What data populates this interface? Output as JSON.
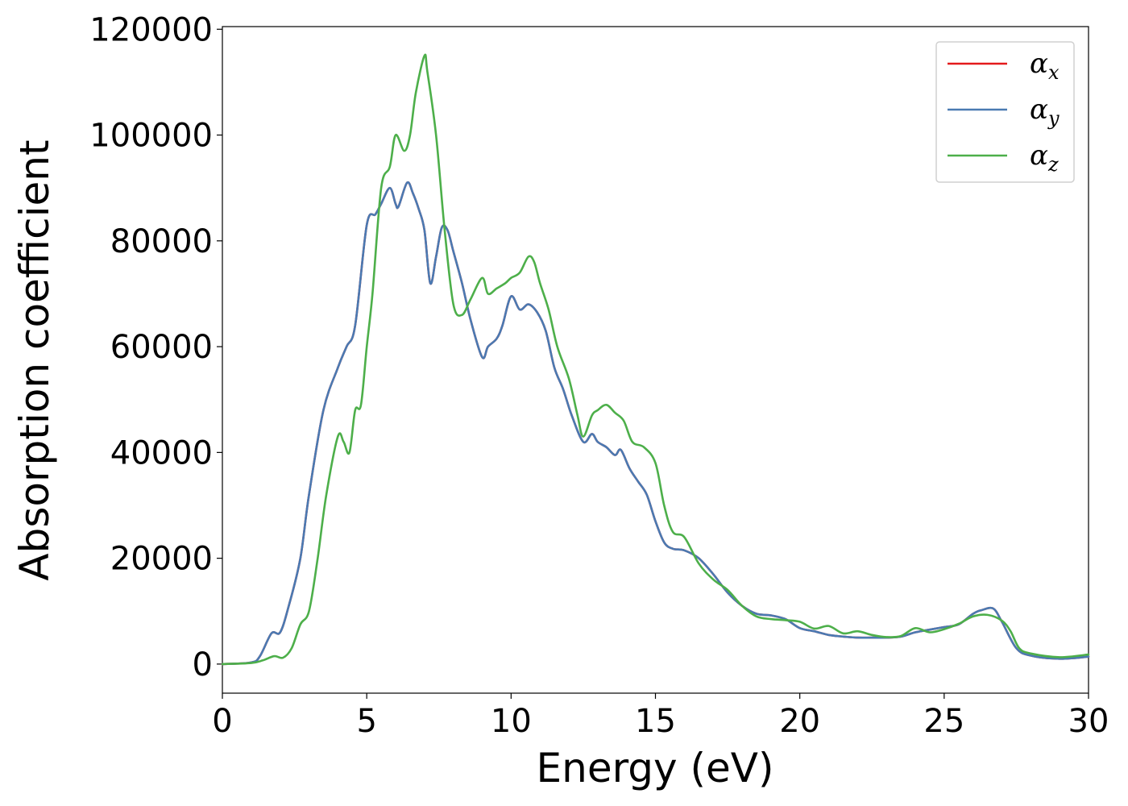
{
  "chart_data": {
    "type": "line",
    "xlabel": "Energy (eV)",
    "ylabel": "Absorption coefficient",
    "xlim": [
      0,
      30
    ],
    "ylim": [
      -5500,
      120500
    ],
    "x_ticks": [
      "0",
      "5",
      "10",
      "15",
      "20",
      "25",
      "30"
    ],
    "y_ticks": [
      "0",
      "20000",
      "40000",
      "60000",
      "80000",
      "100000",
      "120000"
    ],
    "grid": false,
    "legend_position": "top-right",
    "series": [
      {
        "name": "α_x",
        "label_main": "α",
        "label_sub": "x",
        "color": "#e41a1c",
        "x": [
          0.0,
          1.0,
          1.3,
          1.7,
          2.0,
          2.3,
          2.7,
          3.0,
          3.5,
          4.0,
          4.3,
          4.6,
          5.0,
          5.3,
          5.5,
          5.8,
          6.0,
          6.1,
          6.4,
          6.6,
          6.8,
          7.0,
          7.2,
          7.4,
          7.6,
          7.8,
          8.0,
          8.3,
          8.6,
          9.0,
          9.2,
          9.5,
          9.7,
          10.0,
          10.3,
          10.6,
          10.9,
          11.2,
          11.5,
          11.8,
          12.1,
          12.5,
          12.8,
          13.0,
          13.3,
          13.6,
          13.8,
          14.1,
          14.4,
          14.7,
          15.0,
          15.3,
          15.6,
          16.0,
          16.5,
          17.0,
          17.5,
          18.0,
          18.5,
          19.0,
          19.5,
          20.0,
          20.5,
          21.0,
          21.5,
          22.0,
          22.5,
          23.0,
          23.5,
          24.0,
          24.5,
          25.0,
          25.5,
          26.0,
          26.3,
          26.7,
          27.0,
          27.5,
          28.0,
          29.0,
          30.0
        ],
        "y": [
          0,
          300,
          1500,
          5800,
          6000,
          11000,
          20000,
          32000,
          48000,
          56000,
          60000,
          64000,
          83000,
          85000,
          87000,
          90000,
          87000,
          86500,
          91000,
          89000,
          86000,
          82000,
          72000,
          77000,
          82500,
          82000,
          78000,
          72000,
          65000,
          58000,
          60000,
          61500,
          64000,
          69500,
          67000,
          68000,
          66500,
          63000,
          56000,
          52000,
          47000,
          42000,
          43500,
          42000,
          41000,
          39500,
          40500,
          37000,
          34500,
          32000,
          27000,
          23000,
          21800,
          21500,
          20000,
          17000,
          13500,
          11000,
          9500,
          9200,
          8500,
          6800,
          6200,
          5500,
          5200,
          5000,
          5000,
          5000,
          5200,
          6000,
          6500,
          7000,
          7500,
          9500,
          10200,
          10500,
          8000,
          3000,
          1600,
          1000,
          1400
        ]
      },
      {
        "name": "α_y",
        "label_main": "α",
        "label_sub": "y",
        "color": "#4a7ab2",
        "x": [
          0.0,
          1.0,
          1.3,
          1.7,
          2.0,
          2.3,
          2.7,
          3.0,
          3.5,
          4.0,
          4.3,
          4.6,
          5.0,
          5.3,
          5.5,
          5.8,
          6.0,
          6.1,
          6.4,
          6.6,
          6.8,
          7.0,
          7.2,
          7.4,
          7.6,
          7.8,
          8.0,
          8.3,
          8.6,
          9.0,
          9.2,
          9.5,
          9.7,
          10.0,
          10.3,
          10.6,
          10.9,
          11.2,
          11.5,
          11.8,
          12.1,
          12.5,
          12.8,
          13.0,
          13.3,
          13.6,
          13.8,
          14.1,
          14.4,
          14.7,
          15.0,
          15.3,
          15.6,
          16.0,
          16.5,
          17.0,
          17.5,
          18.0,
          18.5,
          19.0,
          19.5,
          20.0,
          20.5,
          21.0,
          21.5,
          22.0,
          22.5,
          23.0,
          23.5,
          24.0,
          24.5,
          25.0,
          25.5,
          26.0,
          26.3,
          26.7,
          27.0,
          27.5,
          28.0,
          29.0,
          30.0
        ],
        "y": [
          0,
          300,
          1500,
          5800,
          6000,
          11000,
          20000,
          32000,
          48000,
          56000,
          60000,
          64000,
          83000,
          85000,
          87000,
          90000,
          87000,
          86500,
          91000,
          89000,
          86000,
          82000,
          72000,
          77000,
          82500,
          82000,
          78000,
          72000,
          65000,
          58000,
          60000,
          61500,
          64000,
          69500,
          67000,
          68000,
          66500,
          63000,
          56000,
          52000,
          47000,
          42000,
          43500,
          42000,
          41000,
          39500,
          40500,
          37000,
          34500,
          32000,
          27000,
          23000,
          21800,
          21500,
          20000,
          17000,
          13500,
          11000,
          9500,
          9200,
          8500,
          6800,
          6200,
          5500,
          5200,
          5000,
          5000,
          5000,
          5200,
          6000,
          6500,
          7000,
          7500,
          9500,
          10200,
          10500,
          8000,
          3000,
          1600,
          1000,
          1400
        ]
      },
      {
        "name": "α_z",
        "label_main": "α",
        "label_sub": "z",
        "color": "#4daf4a",
        "x": [
          0.0,
          1.0,
          1.4,
          1.8,
          2.1,
          2.4,
          2.7,
          3.0,
          3.3,
          3.6,
          4.0,
          4.2,
          4.4,
          4.6,
          4.8,
          5.0,
          5.2,
          5.5,
          5.8,
          6.0,
          6.3,
          6.5,
          6.7,
          7.0,
          7.1,
          7.4,
          7.7,
          8.0,
          8.3,
          8.6,
          9.0,
          9.2,
          9.5,
          9.8,
          10.0,
          10.3,
          10.6,
          10.8,
          11.0,
          11.3,
          11.6,
          12.0,
          12.3,
          12.5,
          12.8,
          13.0,
          13.3,
          13.6,
          13.9,
          14.2,
          14.6,
          15.0,
          15.3,
          15.6,
          16.0,
          16.5,
          17.0,
          17.5,
          18.0,
          18.5,
          19.0,
          19.5,
          20.0,
          20.5,
          21.0,
          21.5,
          22.0,
          22.5,
          23.0,
          23.5,
          24.0,
          24.5,
          25.0,
          25.5,
          26.0,
          26.5,
          27.0,
          27.3,
          27.6,
          28.0,
          29.0,
          30.0
        ],
        "y": [
          0,
          200,
          700,
          1500,
          1200,
          3000,
          7500,
          10000,
          20000,
          32000,
          43000,
          42000,
          40000,
          48000,
          49000,
          60000,
          70000,
          90000,
          94000,
          100000,
          97000,
          100000,
          108000,
          115000,
          112000,
          100000,
          82000,
          68000,
          66000,
          69000,
          73000,
          70000,
          71000,
          72000,
          73000,
          74000,
          77000,
          76000,
          72000,
          67000,
          60000,
          54000,
          47000,
          43000,
          47000,
          48000,
          49000,
          47500,
          46000,
          42000,
          41000,
          38000,
          30000,
          25000,
          24000,
          19000,
          16000,
          14000,
          11000,
          9000,
          8500,
          8300,
          8000,
          6700,
          7200,
          5800,
          6200,
          5500,
          5100,
          5300,
          6800,
          6000,
          6600,
          7600,
          9000,
          9300,
          8200,
          6200,
          3000,
          2000,
          1300,
          1800
        ]
      }
    ]
  }
}
